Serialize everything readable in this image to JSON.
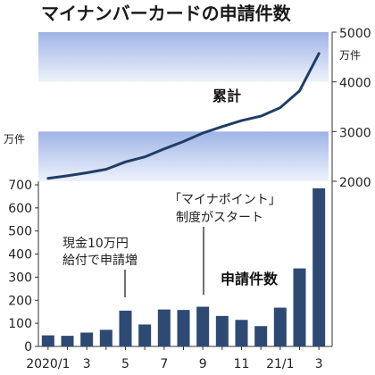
{
  "title": "マイナンバーカードの申請件数",
  "left_unit": "万件",
  "right_unit": "万件",
  "annotations": {
    "cash_benefit_line1": "現金10万円",
    "cash_benefit_line2": "給付で申請増",
    "points_line1": "「マイナポイント」",
    "points_line2": "制度がスタート"
  },
  "chart_data": [
    {
      "type": "bar",
      "name": "申請件数",
      "title": "申請件数",
      "unit": "万件",
      "x": [
        "2020/1",
        "2020/2",
        "2020/3",
        "2020/4",
        "2020/5",
        "2020/6",
        "2020/7",
        "2020/8",
        "2020/9",
        "2020/10",
        "2020/11",
        "2020/12",
        "2021/1",
        "2021/2",
        "2021/3"
      ],
      "values": [
        48,
        46,
        60,
        72,
        155,
        95,
        160,
        158,
        172,
        132,
        115,
        88,
        168,
        338,
        685
      ],
      "ylim": [
        0,
        700
      ],
      "yticks": [
        0,
        100,
        200,
        300,
        400,
        500,
        600,
        700
      ],
      "xtick_labels": [
        "2020/1",
        "",
        "3",
        "",
        "5",
        "",
        "7",
        "",
        "9",
        "",
        "11",
        "",
        "21/1",
        "",
        "3"
      ],
      "color": "#2e4a73"
    },
    {
      "type": "line",
      "name": "累計",
      "title": "累計",
      "unit": "万件",
      "x": [
        "2020/1",
        "2020/2",
        "2020/3",
        "2020/4",
        "2020/5",
        "2020/6",
        "2020/7",
        "2020/8",
        "2020/9",
        "2020/10",
        "2020/11",
        "2020/12",
        "2021/1",
        "2021/2",
        "2021/3"
      ],
      "values": [
        2060,
        2110,
        2170,
        2240,
        2390,
        2490,
        2650,
        2800,
        2970,
        3100,
        3220,
        3310,
        3480,
        3820,
        4570
      ],
      "ylim": [
        2000,
        5000
      ],
      "yticks": [
        2000,
        3000,
        4000,
        5000
      ],
      "axis": "right",
      "color": "#1f3d66"
    }
  ]
}
